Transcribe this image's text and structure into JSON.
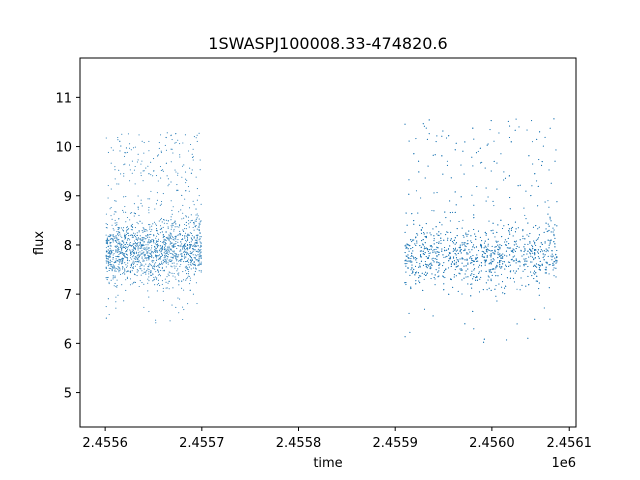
{
  "chart_data": {
    "type": "scatter",
    "title": "1SWASPJ100008.33-474820.6",
    "xlabel": "time",
    "ylabel": "flux",
    "x_offset_label": "1e6",
    "xlim": [
      2455594.0,
      2456107.0
    ],
    "ylim": [
      4.3,
      11.8
    ],
    "x_ticks": [
      2455620,
      2455720,
      2455820,
      2455920,
      2456020,
      2456100
    ],
    "x_tick_labels": [
      "2.4556",
      "2.4557",
      "2.4558",
      "2.4559",
      "2.4560",
      "2.4561"
    ],
    "y_ticks": [
      5,
      6,
      7,
      8,
      9,
      10,
      11
    ],
    "y_tick_labels": [
      "5",
      "6",
      "7",
      "8",
      "9",
      "10",
      "11"
    ],
    "grid": false,
    "marker_color": "#1f77b4",
    "series": [
      {
        "segments": [
          {
            "x_start": 2455621,
            "x_end": 2455720,
            "median": 7.9,
            "upper": 10.3,
            "lower": 6.4,
            "density": "high"
          },
          {
            "x_start": 2455930,
            "x_end": 2456088,
            "median": 7.8,
            "upper": 10.6,
            "lower": 6.0,
            "density": "high"
          }
        ],
        "sample_points": [
          [
            2455621,
            8.2
          ],
          [
            2455624,
            7.6
          ],
          [
            2455630,
            8.9
          ],
          [
            2455636,
            7.4
          ],
          [
            2455640,
            9.8
          ],
          [
            2455648,
            7.9
          ],
          [
            2455655,
            8.6
          ],
          [
            2455660,
            7.2
          ],
          [
            2455668,
            8.1
          ],
          [
            2455675,
            9.3
          ],
          [
            2455682,
            7.7
          ],
          [
            2455690,
            8.4
          ],
          [
            2455697,
            6.9
          ],
          [
            2455700,
            9.6
          ],
          [
            2455706,
            7.5
          ],
          [
            2455712,
            8.3
          ],
          [
            2455718,
            7.8
          ],
          [
            2455934,
            8.0
          ],
          [
            2455942,
            9.1
          ],
          [
            2455950,
            7.3
          ],
          [
            2455958,
            8.7
          ],
          [
            2455966,
            7.6
          ],
          [
            2455974,
            9.7
          ],
          [
            2455982,
            7.9
          ],
          [
            2455990,
            8.5
          ],
          [
            2455998,
            7.2
          ],
          [
            2456006,
            9.9
          ],
          [
            2456014,
            7.7
          ],
          [
            2456022,
            8.8
          ],
          [
            2456030,
            7.4
          ],
          [
            2456038,
            9.4
          ],
          [
            2456046,
            7.1
          ],
          [
            2456054,
            8.6
          ],
          [
            2456062,
            10.1
          ],
          [
            2456070,
            7.5
          ],
          [
            2456078,
            8.9
          ],
          [
            2456086,
            7.8
          ]
        ]
      }
    ]
  }
}
